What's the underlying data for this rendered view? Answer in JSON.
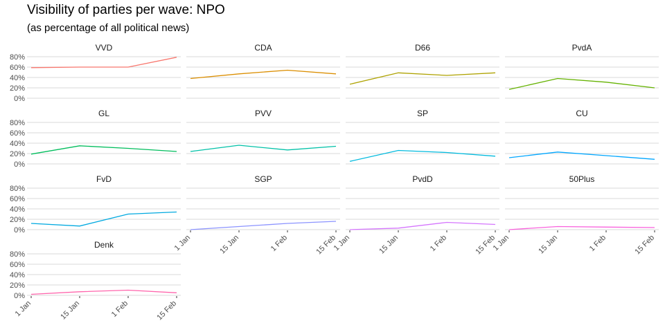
{
  "title": "Visibility of parties per wave: NPO",
  "subtitle": "(as percentage of all political news)",
  "chart_data": {
    "type": "line",
    "facet": true,
    "x": [
      "1 Jan",
      "15 Jan",
      "1 Feb",
      "15 Feb"
    ],
    "y_ticks": [
      "0%",
      "20%",
      "40%",
      "60%",
      "80%"
    ],
    "ylim": [
      0,
      80
    ],
    "grid": true,
    "series": [
      {
        "name": "VVD",
        "color": "#F8766D",
        "values": [
          59,
          60,
          60,
          79
        ]
      },
      {
        "name": "CDA",
        "color": "#DB8E00",
        "values": [
          38,
          47,
          54,
          47
        ]
      },
      {
        "name": "D66",
        "color": "#AEA200",
        "values": [
          27,
          49,
          44,
          49
        ]
      },
      {
        "name": "PvdA",
        "color": "#64B200",
        "values": [
          17,
          38,
          31,
          20
        ]
      },
      {
        "name": "GL",
        "color": "#00BD5C",
        "values": [
          19,
          35,
          30,
          24
        ]
      },
      {
        "name": "PVV",
        "color": "#00C1A7",
        "values": [
          24,
          36,
          27,
          34
        ]
      },
      {
        "name": "SP",
        "color": "#00BADE",
        "values": [
          5,
          26,
          22,
          15
        ]
      },
      {
        "name": "CU",
        "color": "#00A6FF",
        "values": [
          12,
          23,
          16,
          9
        ]
      },
      {
        "name": "FvD",
        "color": "#00A9E0",
        "values": [
          12,
          7,
          30,
          34
        ]
      },
      {
        "name": "SGP",
        "color": "#8B93FF",
        "values": [
          0,
          6,
          12,
          16
        ]
      },
      {
        "name": "PvdD",
        "color": "#D575FE",
        "values": [
          0,
          3,
          14,
          10
        ]
      },
      {
        "name": "50Plus",
        "color": "#F962DD",
        "values": [
          0,
          6,
          5,
          4
        ]
      },
      {
        "name": "Denk",
        "color": "#FF65AC",
        "values": [
          2,
          7,
          10,
          5
        ]
      }
    ]
  }
}
